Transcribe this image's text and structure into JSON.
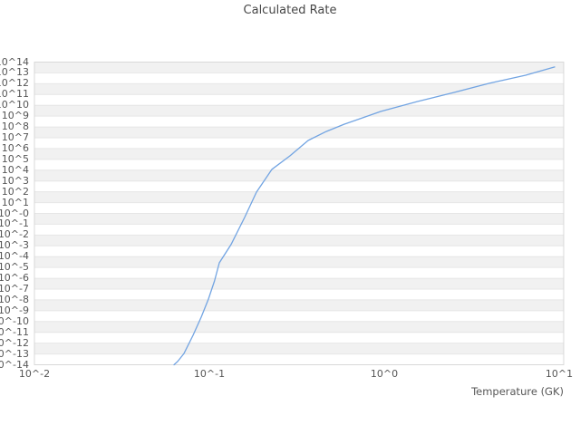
{
  "chart_data": {
    "type": "line",
    "title": "Calculated Rate",
    "xlabel": "Temperature (GK)",
    "ylabel": "",
    "xscale": "log",
    "yscale": "log",
    "xlog_range": [
      -2,
      1.026
    ],
    "ylog_range": [
      -14,
      14
    ],
    "grid": "horizontal-bands-alternating",
    "legend": "none",
    "colors": {
      "band": "#f1f1f1",
      "gridline": "#e6e6e6",
      "border": "#d8d8d8",
      "title_text": "#474747",
      "tick_text": "#565656",
      "line": "#72a4e2"
    },
    "x_ticks": [
      {
        "label": "10^-2",
        "log": -2
      },
      {
        "label": "10^-1",
        "log": -1
      },
      {
        "label": "10^0",
        "log": 0
      },
      {
        "label": "10^1",
        "log": 1
      }
    ],
    "y_ticks": [
      {
        "label": "10^14",
        "log": 14
      },
      {
        "label": "10^13",
        "log": 13
      },
      {
        "label": "10^12",
        "log": 12
      },
      {
        "label": "10^11",
        "log": 11
      },
      {
        "label": "10^10",
        "log": 10
      },
      {
        "label": "10^9",
        "log": 9
      },
      {
        "label": "10^8",
        "log": 8
      },
      {
        "label": "10^7",
        "log": 7
      },
      {
        "label": "10^6",
        "log": 6
      },
      {
        "label": "10^5",
        "log": 5
      },
      {
        "label": "10^4",
        "log": 4
      },
      {
        "label": "10^3",
        "log": 3
      },
      {
        "label": "10^2",
        "log": 2
      },
      {
        "label": "10^1",
        "log": 1
      },
      {
        "label": "10^-0",
        "log": 0
      },
      {
        "label": "10^-1",
        "log": -1
      },
      {
        "label": "10^-2",
        "log": -2
      },
      {
        "label": "10^-3",
        "log": -3
      },
      {
        "label": "10^-4",
        "log": -4
      },
      {
        "label": "10^-5",
        "log": -5
      },
      {
        "label": "10^-6",
        "log": -6
      },
      {
        "label": "10^-7",
        "log": -7
      },
      {
        "label": "10^-8",
        "log": -8
      },
      {
        "label": "10^-9",
        "log": -9
      },
      {
        "label": "10^-10",
        "log": -10
      },
      {
        "label": "10^-11",
        "log": -11
      },
      {
        "label": "10^-12",
        "log": -12
      },
      {
        "label": "10^-13",
        "log": -13
      },
      {
        "label": "10^-14",
        "log": -14
      }
    ],
    "series": [
      {
        "name": "calculated-rate",
        "color": "#72a4e2",
        "x": [
          0.0628,
          0.0659,
          0.0716,
          0.0807,
          0.0898,
          0.0988,
          0.107,
          0.114,
          0.133,
          0.159,
          0.186,
          0.228,
          0.289,
          0.367,
          0.466,
          0.592,
          0.752,
          0.953,
          1.54,
          2.48,
          3.99,
          6.43,
          9.42
        ],
        "y": [
          1e-14,
          2e-14,
          1.1e-13,
          5.3e-12,
          2.5e-10,
          1.2e-08,
          5.7e-07,
          2.7e-05,
          0.0013,
          0.42,
          93.0,
          12000.0,
          210000.0,
          5600000.0,
          38000000.0,
          180000000.0,
          700000000.0,
          2700000000.0,
          22000000000.0,
          150000000000.0,
          1100000000000.0,
          6100000000000.0,
          35000000000000.0
        ]
      }
    ]
  }
}
